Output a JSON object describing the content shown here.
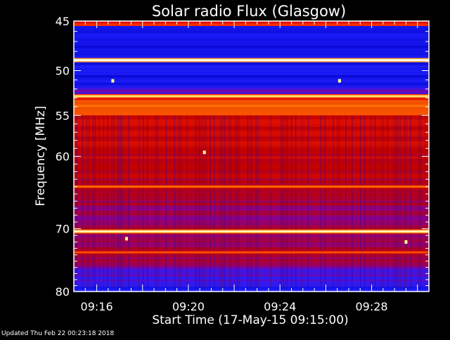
{
  "chart_data": {
    "type": "heatmap",
    "title": "Solar radio Flux (Glasgow)",
    "xlabel": "Start Time (17-May-15 09:15:00)",
    "ylabel": "Frequency [MHz]",
    "x_start": "09:15:00",
    "x_end": "09:30:30",
    "x_ticks": [
      "09:16",
      "09:20",
      "09:24",
      "09:28"
    ],
    "x_tick_minutes": [
      16,
      20,
      24,
      28
    ],
    "x_range_minutes": [
      15,
      30.5
    ],
    "y_ticks": [
      45,
      50,
      55,
      60,
      70,
      80
    ],
    "y_range": [
      45,
      80
    ],
    "y_scale": "log",
    "colormap": [
      "#000030",
      "#0000c8",
      "#2020ff",
      "#8000a0",
      "#c00000",
      "#ff2000",
      "#ff8000",
      "#ffff80",
      "#ffffff"
    ],
    "grid": false,
    "bands": [
      {
        "mhz": 48.9,
        "level": 0.98
      },
      {
        "mhz": 52.8,
        "level": 0.85
      },
      {
        "mhz": 53.9,
        "level": 0.75
      },
      {
        "mhz": 64.0,
        "level": 0.72
      },
      {
        "mhz": 70.4,
        "level": 0.92
      },
      {
        "mhz": 73.6,
        "level": 0.68
      }
    ],
    "spots": [
      {
        "minute": 16.7,
        "mhz": 51.1
      },
      {
        "minute": 26.6,
        "mhz": 51.1
      },
      {
        "minute": 20.7,
        "mhz": 59.5
      },
      {
        "minute": 17.3,
        "mhz": 71.5
      },
      {
        "minute": 29.5,
        "mhz": 72.0
      }
    ]
  },
  "footer": "Updated Thu Feb 22 00:23:18 2018"
}
